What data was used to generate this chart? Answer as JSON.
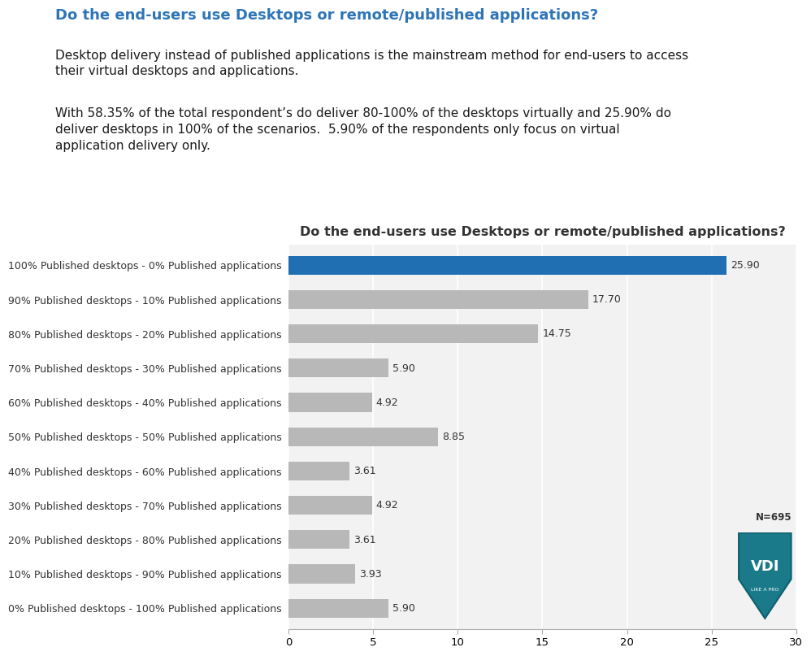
{
  "title": "Do the end-users use Desktops or remote/published applications?",
  "header_title": "Do the end-users use Desktops or remote/published applications?",
  "subtitle1": "Desktop delivery instead of published applications is the mainstream method for end-users to access\ntheir virtual desktops and applications.",
  "subtitle2": "With 58.35% of the total respondent’s do deliver 80-100% of the desktops virtually and 25.90% do\ndeliver desktops in 100% of the scenarios.  5.90% of the respondents only focus on virtual\napplication delivery only.",
  "categories": [
    "100% Published desktops - 0% Published applications",
    "90% Published desktops - 10% Published applications",
    "80% Published desktops - 20% Published applications",
    "70% Published desktops - 30% Published applications",
    "60% Published desktops - 40% Published applications",
    "50% Published desktops - 50% Published applications",
    "40% Published desktops - 60% Published applications",
    "30% Published desktops - 70% Published applications",
    "20% Published desktops - 80% Published applications",
    "10% Published desktops - 90% Published applications",
    "0% Published desktops - 100% Published applications"
  ],
  "values": [
    25.9,
    17.7,
    14.75,
    5.9,
    4.92,
    8.85,
    3.61,
    4.92,
    3.61,
    3.93,
    5.9
  ],
  "bar_colors": [
    "#1f6fb2",
    "#b8b8b8",
    "#b8b8b8",
    "#b8b8b8",
    "#b8b8b8",
    "#b8b8b8",
    "#b8b8b8",
    "#b8b8b8",
    "#b8b8b8",
    "#b8b8b8",
    "#b8b8b8"
  ],
  "xlim": [
    0,
    30
  ],
  "xticks": [
    0,
    5,
    10,
    15,
    20,
    25,
    30
  ],
  "background_color": "#ffffff",
  "chart_bg": "#f2f2f2",
  "n_label": "N=695",
  "header_color": "#2e75b6",
  "title_fontsize": 11.5,
  "label_fontsize": 9,
  "value_fontsize": 9
}
